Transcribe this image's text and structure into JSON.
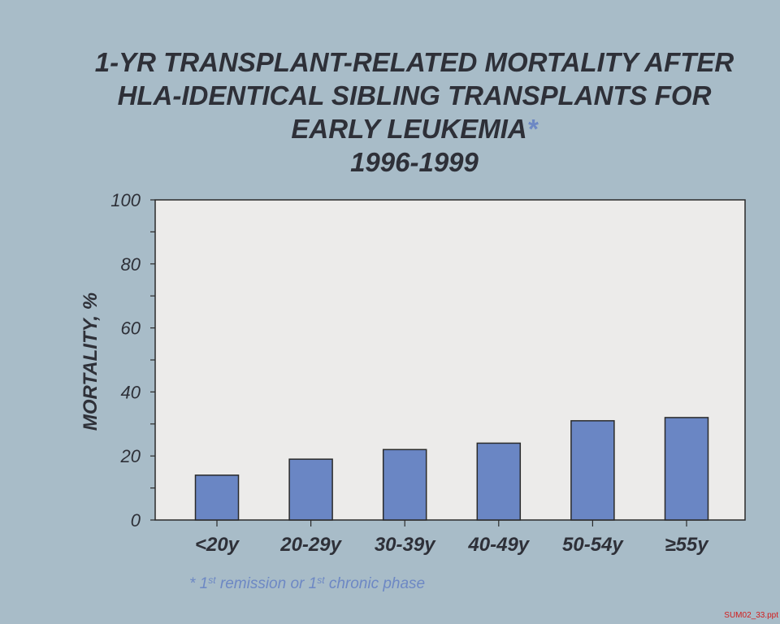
{
  "title": {
    "line1": "1-YR TRANSPLANT-RELATED MORTALITY AFTER",
    "line2": "HLA-IDENTICAL SIBLING TRANSPLANTS FOR",
    "line3": "EARLY LEUKEMIA",
    "asterisk": "*",
    "years": "1996-1999"
  },
  "chart_data": {
    "type": "bar",
    "title": "1-YR TRANSPLANT-RELATED MORTALITY AFTER HLA-IDENTICAL SIBLING TRANSPLANTS FOR EARLY LEUKEMIA* 1996-1999",
    "categories": [
      "<20y",
      "20-29y",
      "30-39y",
      "40-49y",
      "50-54y",
      "≥55y"
    ],
    "values": [
      14,
      19,
      22,
      24,
      31,
      32
    ],
    "xlabel": "",
    "ylabel": "MORTALITY, %",
    "ylim": [
      0,
      100
    ],
    "yticks": [
      0,
      20,
      40,
      60,
      80,
      100
    ],
    "grid": false,
    "legend": "none"
  },
  "colors": {
    "background": "#a8bcc8",
    "plot_area": "#ecebea",
    "bar": "#6a86c4",
    "text": "#2e3038",
    "accent": "#6d88c4",
    "file_tag": "#d21c1c"
  },
  "footnote": {
    "prefix": "* 1",
    "sup1": "st",
    "middle": " remission or 1",
    "sup2": "st",
    "suffix": " chronic phase"
  },
  "file_tag": "SUM02_33.ppt"
}
